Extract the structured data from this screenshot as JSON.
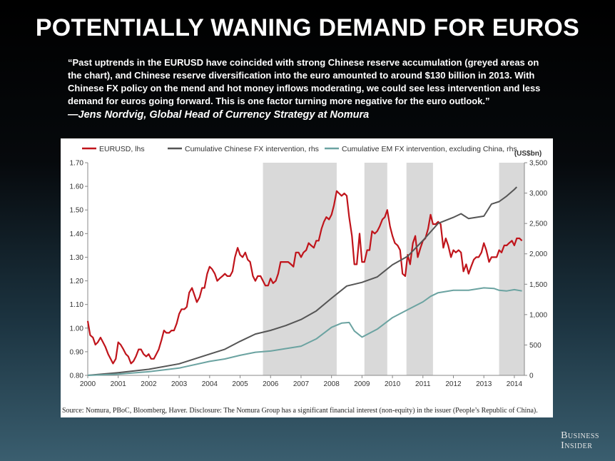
{
  "slide": {
    "title": "POTENTIALLY WANING DEMAND FOR EUROS",
    "quote": "“Past uptrends in the EURUSD have coincided with strong Chinese reserve accumulation (greyed areas on the chart), and Chinese reserve diversification into the euro amounted to around $130 billion in 2013. With Chinese FX policy on the mend and hot money inflows moderating, we could see less intervention and less demand for euros going forward. This is one factor turning more negative for the euro outlook.”",
    "attribution": "—Jens Nordvig, Global Head of Currency Strategy at Nomura",
    "source": "Source: Nomura, PBoC, Bloomberg, Haver. Disclosure: The Nomura Group has a significant financial interest (non-equity) in the issuer (People’s Republic of China).",
    "brand_line1": "Business",
    "brand_line2": "Insider"
  },
  "chart_data": {
    "type": "line",
    "title": "",
    "xlabel": "",
    "ylabel_left": "",
    "ylabel_right": "(US$bn)",
    "xlim": [
      2000,
      2014.33
    ],
    "ylim_left": [
      0.8,
      1.7
    ],
    "ylim_right": [
      0,
      3500
    ],
    "x_ticks": [
      "2000",
      "2001",
      "2002",
      "2003",
      "2004",
      "2005",
      "2006",
      "2007",
      "2008",
      "2009",
      "2010",
      "2011",
      "2012",
      "2013",
      "2014"
    ],
    "y_ticks_left": [
      "1.70",
      "1.60",
      "1.50",
      "1.40",
      "1.30",
      "1.20",
      "1.10",
      "1.00",
      "0.90",
      "0.80"
    ],
    "y_ticks_right": [
      "3,500",
      "3,000",
      "2,500",
      "2,000",
      "1,500",
      "1,000",
      "500",
      "0"
    ],
    "legend_position": "top",
    "shaded_periods": [
      [
        2005.75,
        2008.17
      ],
      [
        2009.08,
        2009.83
      ],
      [
        2010.46,
        2011.33
      ],
      [
        2013.5,
        2014.33
      ]
    ],
    "series": [
      {
        "name": "EURUSD, lhs",
        "axis": "left",
        "color": "#c0141b",
        "points": [
          [
            2000.0,
            1.03
          ],
          [
            2000.08,
            0.97
          ],
          [
            2000.17,
            0.96
          ],
          [
            2000.25,
            0.93
          ],
          [
            2000.33,
            0.94
          ],
          [
            2000.42,
            0.96
          ],
          [
            2000.5,
            0.94
          ],
          [
            2000.58,
            0.92
          ],
          [
            2000.67,
            0.89
          ],
          [
            2000.75,
            0.87
          ],
          [
            2000.83,
            0.85
          ],
          [
            2000.92,
            0.87
          ],
          [
            2001.0,
            0.94
          ],
          [
            2001.08,
            0.93
          ],
          [
            2001.17,
            0.91
          ],
          [
            2001.25,
            0.89
          ],
          [
            2001.33,
            0.88
          ],
          [
            2001.42,
            0.85
          ],
          [
            2001.5,
            0.86
          ],
          [
            2001.58,
            0.88
          ],
          [
            2001.67,
            0.91
          ],
          [
            2001.75,
            0.91
          ],
          [
            2001.83,
            0.89
          ],
          [
            2001.92,
            0.88
          ],
          [
            2002.0,
            0.89
          ],
          [
            2002.08,
            0.87
          ],
          [
            2002.17,
            0.87
          ],
          [
            2002.25,
            0.89
          ],
          [
            2002.33,
            0.91
          ],
          [
            2002.42,
            0.95
          ],
          [
            2002.5,
            0.99
          ],
          [
            2002.58,
            0.98
          ],
          [
            2002.67,
            0.98
          ],
          [
            2002.75,
            0.99
          ],
          [
            2002.83,
            0.99
          ],
          [
            2002.92,
            1.02
          ],
          [
            2003.0,
            1.06
          ],
          [
            2003.08,
            1.08
          ],
          [
            2003.17,
            1.08
          ],
          [
            2003.25,
            1.09
          ],
          [
            2003.33,
            1.15
          ],
          [
            2003.42,
            1.17
          ],
          [
            2003.5,
            1.14
          ],
          [
            2003.58,
            1.11
          ],
          [
            2003.67,
            1.13
          ],
          [
            2003.75,
            1.17
          ],
          [
            2003.83,
            1.17
          ],
          [
            2003.92,
            1.23
          ],
          [
            2004.0,
            1.26
          ],
          [
            2004.08,
            1.25
          ],
          [
            2004.17,
            1.23
          ],
          [
            2004.25,
            1.2
          ],
          [
            2004.33,
            1.21
          ],
          [
            2004.42,
            1.22
          ],
          [
            2004.5,
            1.23
          ],
          [
            2004.58,
            1.22
          ],
          [
            2004.67,
            1.22
          ],
          [
            2004.75,
            1.24
          ],
          [
            2004.83,
            1.3
          ],
          [
            2004.92,
            1.34
          ],
          [
            2005.0,
            1.31
          ],
          [
            2005.08,
            1.3
          ],
          [
            2005.17,
            1.32
          ],
          [
            2005.25,
            1.29
          ],
          [
            2005.33,
            1.28
          ],
          [
            2005.42,
            1.22
          ],
          [
            2005.5,
            1.2
          ],
          [
            2005.58,
            1.22
          ],
          [
            2005.67,
            1.22
          ],
          [
            2005.75,
            1.2
          ],
          [
            2005.83,
            1.18
          ],
          [
            2005.92,
            1.18
          ],
          [
            2006.0,
            1.21
          ],
          [
            2006.08,
            1.19
          ],
          [
            2006.17,
            1.2
          ],
          [
            2006.25,
            1.23
          ],
          [
            2006.33,
            1.28
          ],
          [
            2006.42,
            1.28
          ],
          [
            2006.5,
            1.28
          ],
          [
            2006.58,
            1.28
          ],
          [
            2006.67,
            1.27
          ],
          [
            2006.75,
            1.26
          ],
          [
            2006.83,
            1.32
          ],
          [
            2006.92,
            1.32
          ],
          [
            2007.0,
            1.3
          ],
          [
            2007.08,
            1.32
          ],
          [
            2007.17,
            1.33
          ],
          [
            2007.25,
            1.36
          ],
          [
            2007.33,
            1.35
          ],
          [
            2007.42,
            1.34
          ],
          [
            2007.5,
            1.37
          ],
          [
            2007.58,
            1.37
          ],
          [
            2007.67,
            1.42
          ],
          [
            2007.75,
            1.45
          ],
          [
            2007.83,
            1.47
          ],
          [
            2007.92,
            1.46
          ],
          [
            2008.0,
            1.48
          ],
          [
            2008.08,
            1.52
          ],
          [
            2008.17,
            1.58
          ],
          [
            2008.25,
            1.57
          ],
          [
            2008.33,
            1.56
          ],
          [
            2008.42,
            1.57
          ],
          [
            2008.5,
            1.56
          ],
          [
            2008.58,
            1.47
          ],
          [
            2008.67,
            1.39
          ],
          [
            2008.75,
            1.27
          ],
          [
            2008.83,
            1.27
          ],
          [
            2008.92,
            1.4
          ],
          [
            2009.0,
            1.28
          ],
          [
            2009.08,
            1.28
          ],
          [
            2009.17,
            1.33
          ],
          [
            2009.25,
            1.33
          ],
          [
            2009.33,
            1.41
          ],
          [
            2009.42,
            1.4
          ],
          [
            2009.5,
            1.41
          ],
          [
            2009.58,
            1.43
          ],
          [
            2009.67,
            1.46
          ],
          [
            2009.75,
            1.47
          ],
          [
            2009.83,
            1.5
          ],
          [
            2009.92,
            1.43
          ],
          [
            2010.0,
            1.39
          ],
          [
            2010.08,
            1.36
          ],
          [
            2010.17,
            1.35
          ],
          [
            2010.25,
            1.33
          ],
          [
            2010.33,
            1.23
          ],
          [
            2010.42,
            1.22
          ],
          [
            2010.5,
            1.31
          ],
          [
            2010.58,
            1.27
          ],
          [
            2010.67,
            1.36
          ],
          [
            2010.75,
            1.39
          ],
          [
            2010.83,
            1.3
          ],
          [
            2010.92,
            1.34
          ],
          [
            2011.0,
            1.37
          ],
          [
            2011.08,
            1.38
          ],
          [
            2011.17,
            1.42
          ],
          [
            2011.25,
            1.48
          ],
          [
            2011.33,
            1.44
          ],
          [
            2011.42,
            1.44
          ],
          [
            2011.5,
            1.45
          ],
          [
            2011.58,
            1.44
          ],
          [
            2011.67,
            1.34
          ],
          [
            2011.75,
            1.38
          ],
          [
            2011.83,
            1.35
          ],
          [
            2011.92,
            1.3
          ],
          [
            2012.0,
            1.33
          ],
          [
            2012.08,
            1.32
          ],
          [
            2012.17,
            1.33
          ],
          [
            2012.25,
            1.32
          ],
          [
            2012.33,
            1.24
          ],
          [
            2012.42,
            1.27
          ],
          [
            2012.5,
            1.23
          ],
          [
            2012.58,
            1.26
          ],
          [
            2012.67,
            1.29
          ],
          [
            2012.75,
            1.3
          ],
          [
            2012.83,
            1.3
          ],
          [
            2012.92,
            1.32
          ],
          [
            2013.0,
            1.36
          ],
          [
            2013.08,
            1.33
          ],
          [
            2013.17,
            1.28
          ],
          [
            2013.25,
            1.3
          ],
          [
            2013.33,
            1.3
          ],
          [
            2013.42,
            1.3
          ],
          [
            2013.5,
            1.33
          ],
          [
            2013.58,
            1.32
          ],
          [
            2013.67,
            1.35
          ],
          [
            2013.75,
            1.35
          ],
          [
            2013.83,
            1.36
          ],
          [
            2013.92,
            1.37
          ],
          [
            2014.0,
            1.35
          ],
          [
            2014.08,
            1.38
          ],
          [
            2014.17,
            1.38
          ],
          [
            2014.25,
            1.37
          ]
        ]
      },
      {
        "name": "Cumulative Chinese FX intervention, rhs",
        "axis": "right",
        "color": "#555555",
        "points": [
          [
            2000.0,
            0
          ],
          [
            2001.0,
            45
          ],
          [
            2002.0,
            100
          ],
          [
            2003.0,
            190
          ],
          [
            2004.0,
            350
          ],
          [
            2004.5,
            430
          ],
          [
            2005.0,
            560
          ],
          [
            2005.5,
            680
          ],
          [
            2006.0,
            740
          ],
          [
            2006.5,
            820
          ],
          [
            2007.0,
            920
          ],
          [
            2007.5,
            1060
          ],
          [
            2008.0,
            1270
          ],
          [
            2008.5,
            1470
          ],
          [
            2009.0,
            1530
          ],
          [
            2009.5,
            1620
          ],
          [
            2010.0,
            1820
          ],
          [
            2010.5,
            1960
          ],
          [
            2011.0,
            2220
          ],
          [
            2011.5,
            2500
          ],
          [
            2012.0,
            2600
          ],
          [
            2012.25,
            2660
          ],
          [
            2012.5,
            2580
          ],
          [
            2013.0,
            2620
          ],
          [
            2013.25,
            2820
          ],
          [
            2013.5,
            2860
          ],
          [
            2013.75,
            2950
          ],
          [
            2014.0,
            3060
          ],
          [
            2014.08,
            3100
          ]
        ]
      },
      {
        "name": "Cumulative EM FX intervention, excluding China, rhs",
        "axis": "right",
        "color": "#6ba3a1",
        "points": [
          [
            2000.0,
            0
          ],
          [
            2001.0,
            20
          ],
          [
            2002.0,
            60
          ],
          [
            2003.0,
            120
          ],
          [
            2004.0,
            230
          ],
          [
            2004.5,
            270
          ],
          [
            2005.0,
            330
          ],
          [
            2005.5,
            380
          ],
          [
            2006.0,
            400
          ],
          [
            2006.5,
            440
          ],
          [
            2007.0,
            480
          ],
          [
            2007.5,
            600
          ],
          [
            2008.0,
            790
          ],
          [
            2008.33,
            860
          ],
          [
            2008.58,
            870
          ],
          [
            2008.75,
            730
          ],
          [
            2009.0,
            630
          ],
          [
            2009.5,
            760
          ],
          [
            2010.0,
            950
          ],
          [
            2010.5,
            1080
          ],
          [
            2011.0,
            1210
          ],
          [
            2011.25,
            1300
          ],
          [
            2011.5,
            1360
          ],
          [
            2012.0,
            1400
          ],
          [
            2012.5,
            1400
          ],
          [
            2013.0,
            1440
          ],
          [
            2013.33,
            1430
          ],
          [
            2013.5,
            1400
          ],
          [
            2013.75,
            1390
          ],
          [
            2014.0,
            1410
          ],
          [
            2014.25,
            1390
          ]
        ]
      }
    ]
  }
}
